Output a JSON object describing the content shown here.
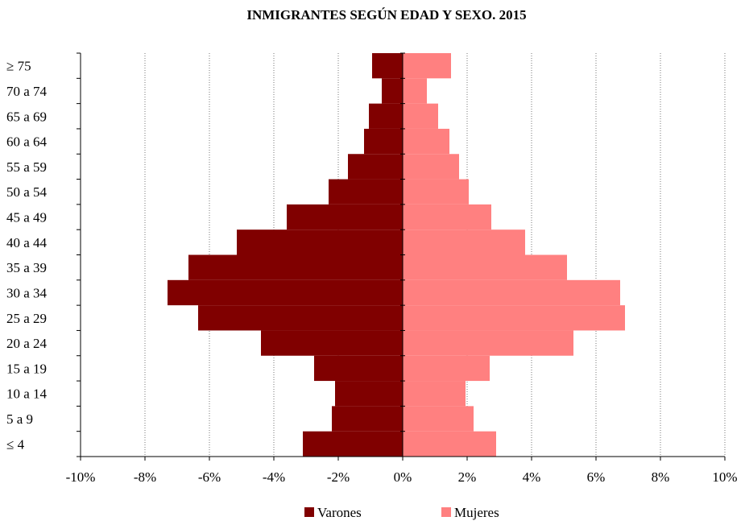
{
  "chart_data": {
    "type": "bar",
    "orientation": "horizontal",
    "subtype": "population-pyramid",
    "title": "INMIGRANTES SEGÚN EDAD Y SEXO. 2015",
    "categories": [
      "≤ 4",
      "5 a 9",
      "10 a 14",
      "15 a 19",
      "20 a 24",
      "25 a 29",
      "30 a 34",
      "35 a 39",
      "40 a 44",
      "45 a 49",
      "50 a 54",
      "55 a 59",
      "60 a 64",
      "65 a 69",
      "70 a 74",
      "≥ 75"
    ],
    "series": [
      {
        "name": "Varones",
        "color": "#800000",
        "values": [
          -3.1,
          -2.2,
          -2.1,
          -2.75,
          -4.4,
          -6.35,
          -7.3,
          -6.65,
          -5.15,
          -3.6,
          -2.3,
          -1.7,
          -1.2,
          -1.05,
          -0.65,
          -0.95
        ]
      },
      {
        "name": "Mujeres",
        "color": "#ff8080",
        "values": [
          2.9,
          2.2,
          1.95,
          2.7,
          5.3,
          6.9,
          6.75,
          5.1,
          3.8,
          2.75,
          2.05,
          1.75,
          1.45,
          1.1,
          0.75,
          1.5
        ]
      }
    ],
    "xlim": [
      -10,
      10
    ],
    "xticks": [
      -10,
      -8,
      -6,
      -4,
      -2,
      0,
      2,
      4,
      6,
      8,
      10
    ],
    "xtick_labels": [
      "-10%",
      "-8%",
      "-6%",
      "-4%",
      "-2%",
      "0%",
      "2%",
      "4%",
      "6%",
      "8%",
      "10%"
    ],
    "grid": "vertical dotted",
    "legend": "bottom"
  }
}
